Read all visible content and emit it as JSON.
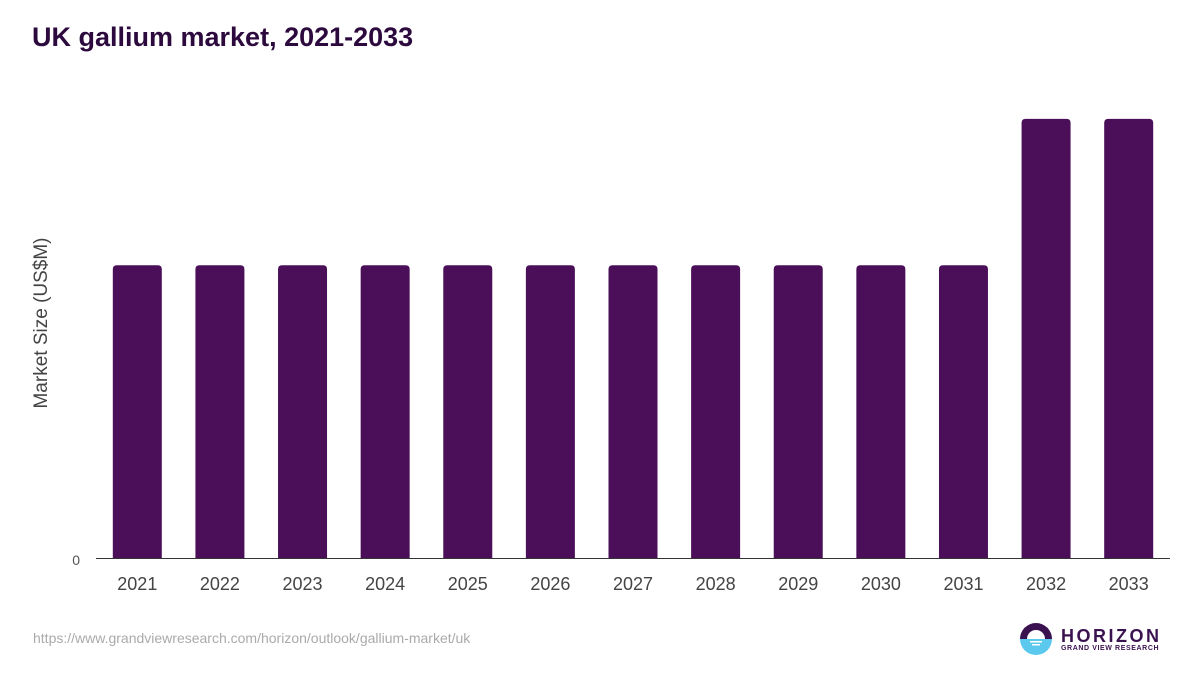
{
  "title": "UK gallium market, 2021-2033",
  "source": "https://www.grandviewresearch.com/horizon/outlook/gallium-market/uk",
  "logo": {
    "name": "HORIZON",
    "sub": "GRAND VIEW RESEARCH"
  },
  "colors": {
    "bar": "#4a0f58",
    "title": "#2d0a3e"
  },
  "chart_data": {
    "type": "bar",
    "title": "UK gallium market, 2021-2033",
    "xlabel": "",
    "ylabel": "Market Size (US$M)",
    "categories": [
      "2021",
      "2022",
      "2023",
      "2024",
      "2025",
      "2026",
      "2027",
      "2028",
      "2029",
      "2030",
      "2031",
      "2032",
      "2033"
    ],
    "values": [
      0.2,
      0.2,
      0.2,
      0.2,
      0.2,
      0.2,
      0.2,
      0.2,
      0.2,
      0.2,
      0.2,
      0.3,
      0.3
    ],
    "yticks": [
      "0"
    ],
    "ylim": [
      0,
      0.33
    ],
    "grid": false
  }
}
